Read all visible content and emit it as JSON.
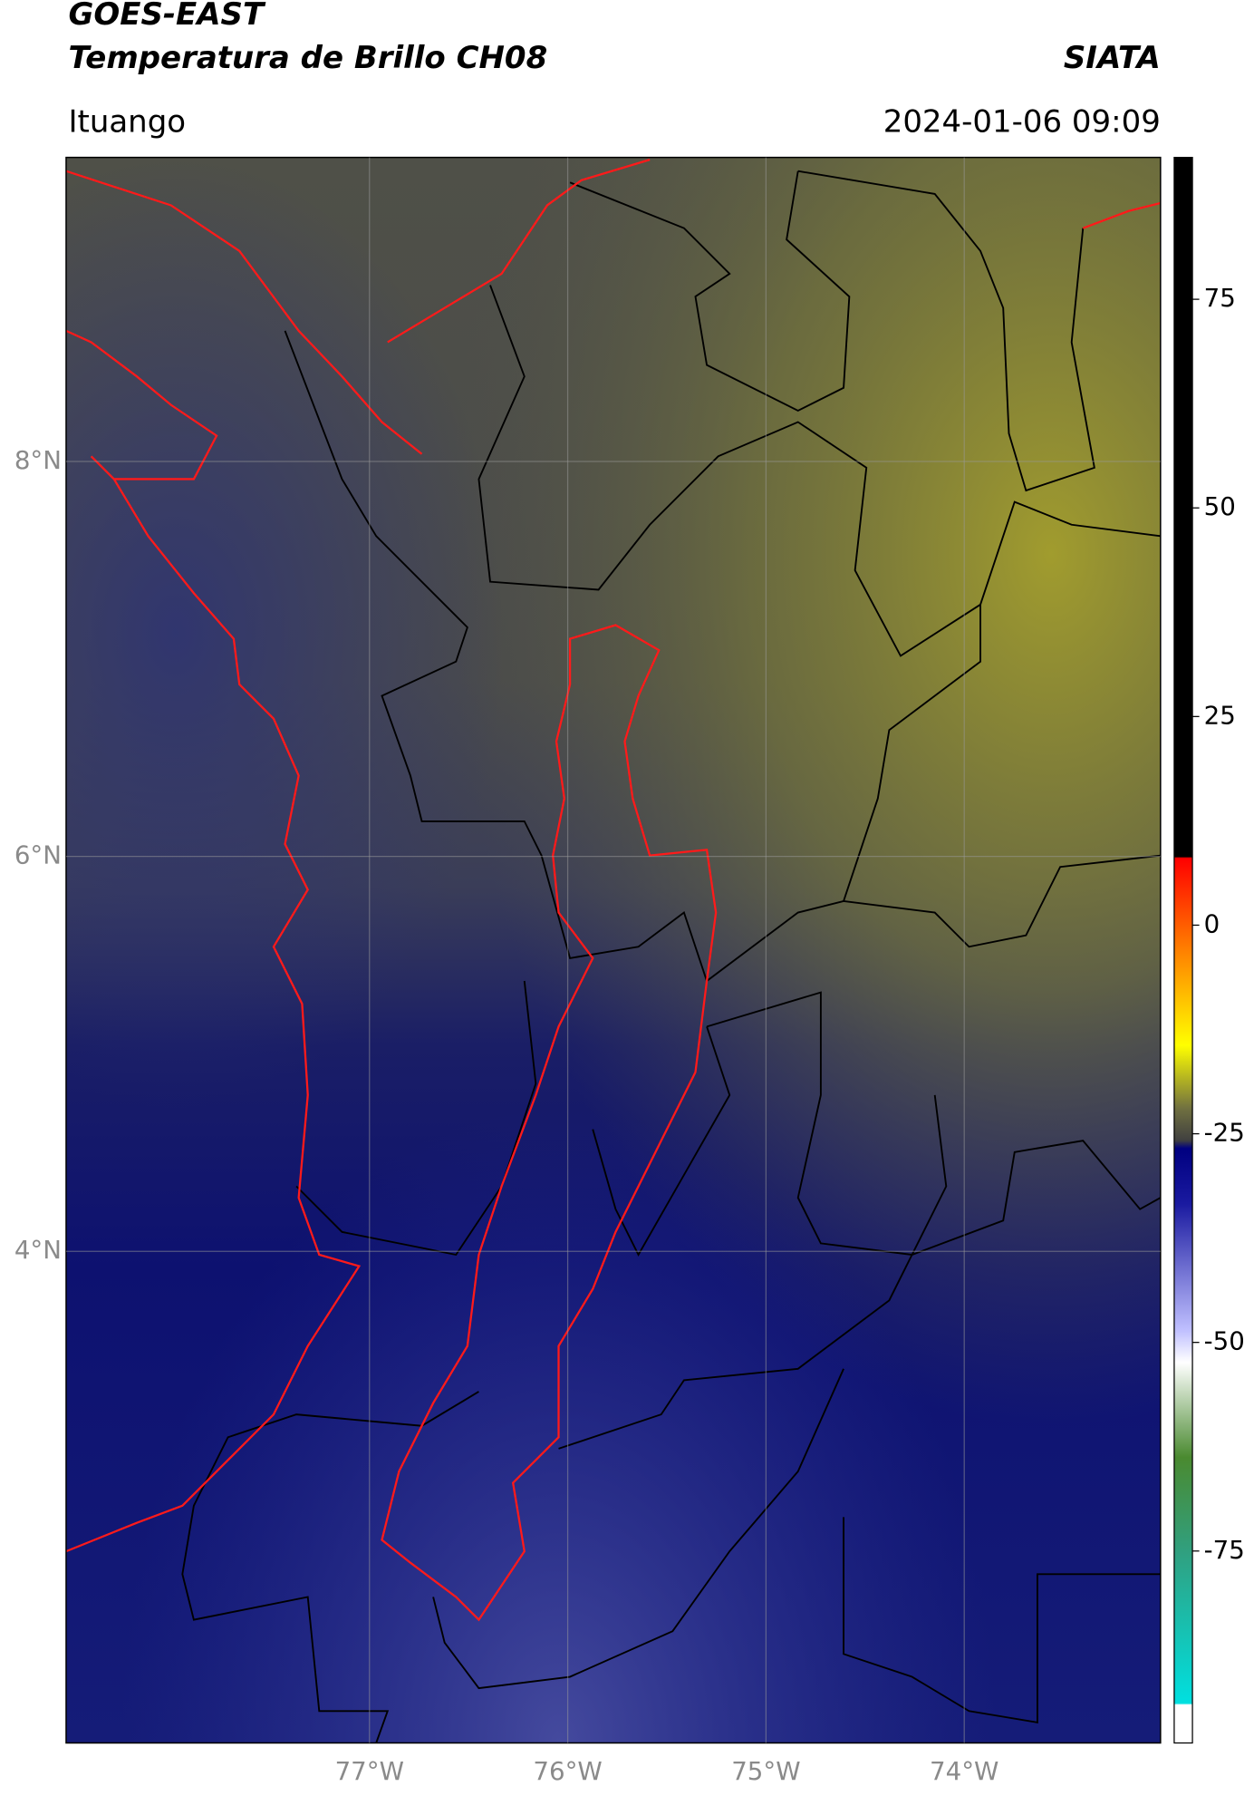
{
  "chart_data": {
    "type": "map",
    "title": "GOES-EAST",
    "subtitle": "Temperatura de Brillo CH08",
    "source": "SIATA",
    "location": "Ituango",
    "date": "2024-01-06 09:09",
    "xlim": [
      -78.53,
      -73.01
    ],
    "ylim": [
      1.51,
      9.54
    ],
    "xticks": [
      {
        "value": -77,
        "label": "77°W"
      },
      {
        "value": -76,
        "label": "76°W"
      },
      {
        "value": -75,
        "label": "75°W"
      },
      {
        "value": -74,
        "label": "74°W"
      }
    ],
    "yticks": [
      {
        "value": 8,
        "label": "8°N"
      },
      {
        "value": 6,
        "label": "6°N"
      },
      {
        "value": 4,
        "label": "4°N"
      }
    ],
    "grid": true,
    "colorbar": {
      "lim": [
        -98,
        92
      ],
      "ticks": [
        75,
        50,
        25,
        0,
        -25,
        -50,
        -75
      ]
    }
  }
}
